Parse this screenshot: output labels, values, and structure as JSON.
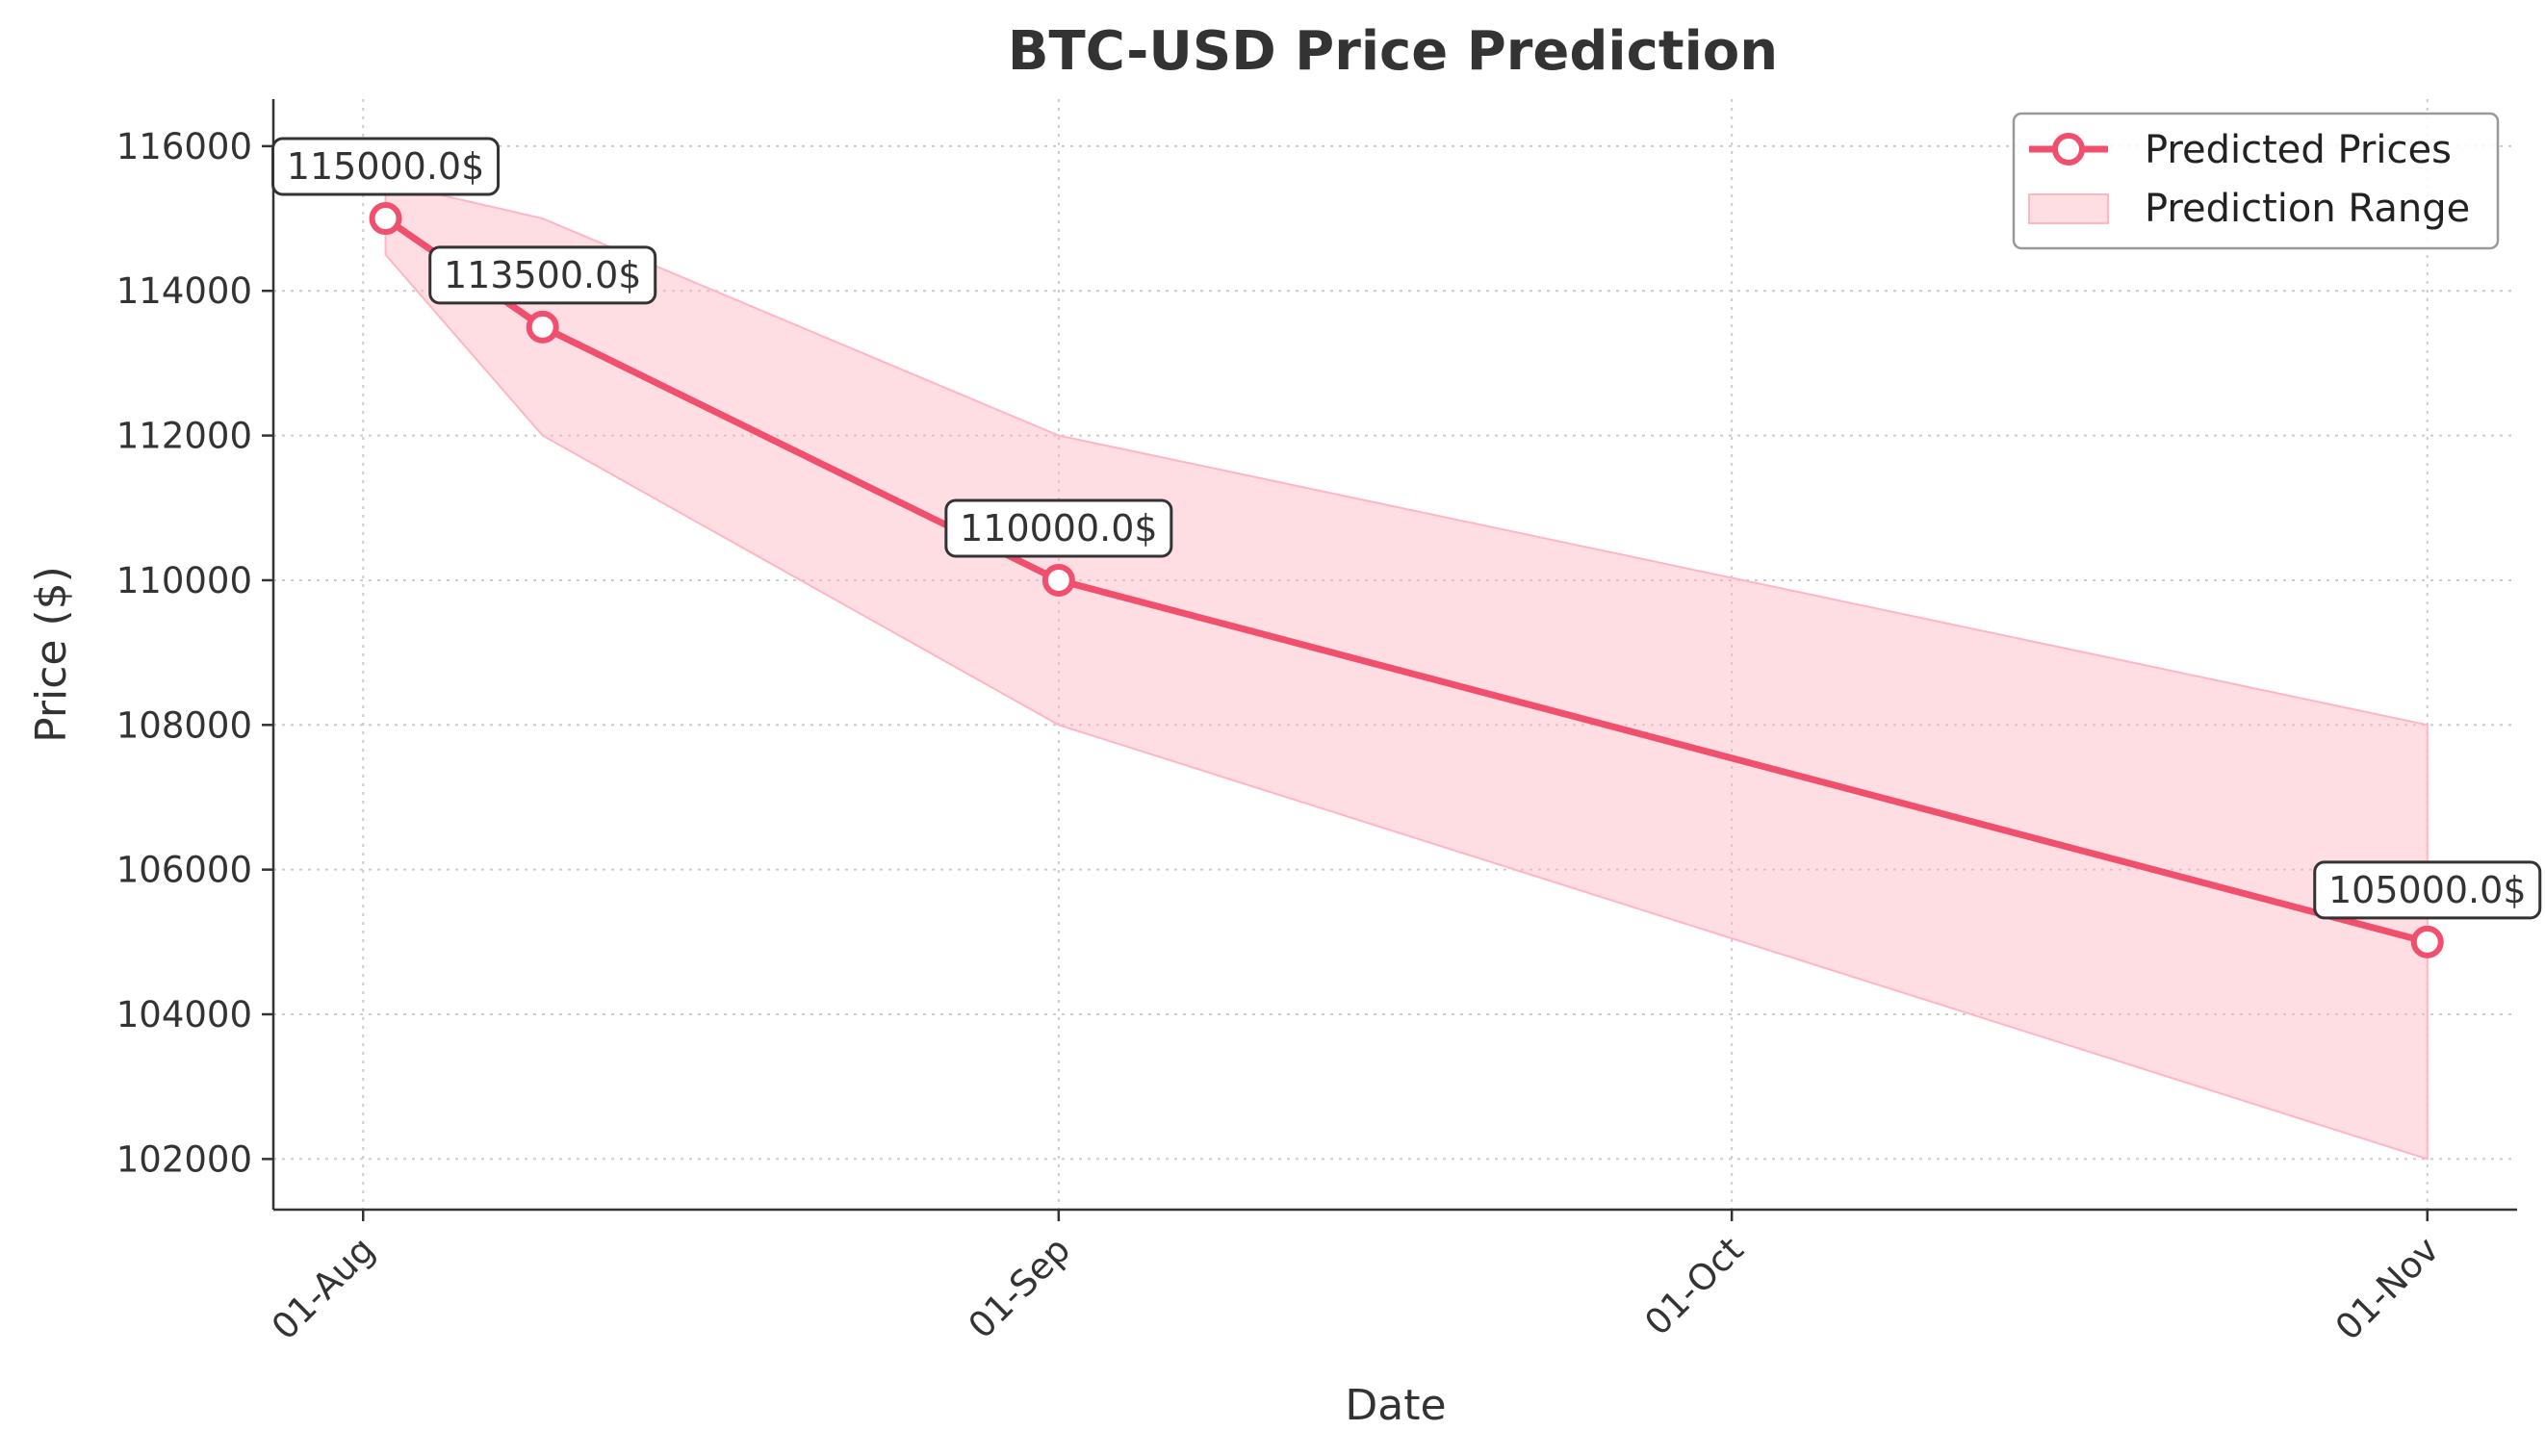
{
  "chart_data": {
    "type": "line",
    "title": "BTC-USD Price Prediction",
    "xlabel": "Date",
    "ylabel": "Price ($)",
    "x_dates": [
      "2025-08-02",
      "2025-08-09",
      "2025-09-01",
      "2025-11-01"
    ],
    "series": [
      {
        "name": "Predicted Prices",
        "values": [
          115000,
          113500,
          110000,
          105000
        ],
        "color": "#f0506e"
      }
    ],
    "range": {
      "name": "Prediction Range",
      "lower": [
        114500,
        112000,
        108000,
        102000
      ],
      "upper": [
        115500,
        115000,
        112000,
        108000
      ],
      "color": "#ffb6c1"
    },
    "annotations": [
      "115000.0$",
      "113500.0$",
      "110000.0$",
      "105000.0$"
    ],
    "x_ticks": [
      {
        "date": "2025-08-01",
        "label": "01-Aug"
      },
      {
        "date": "2025-09-01",
        "label": "01-Sep"
      },
      {
        "date": "2025-10-01",
        "label": "01-Oct"
      },
      {
        "date": "2025-11-01",
        "label": "01-Nov"
      }
    ],
    "y_ticks": [
      "102000",
      "104000",
      "106000",
      "108000",
      "110000",
      "112000",
      "114000",
      "116000"
    ],
    "ylim": [
      101300,
      116650
    ],
    "xlim": [
      "2025-07-28",
      "2025-11-05"
    ],
    "grid": true,
    "legend_position": "top-right"
  }
}
